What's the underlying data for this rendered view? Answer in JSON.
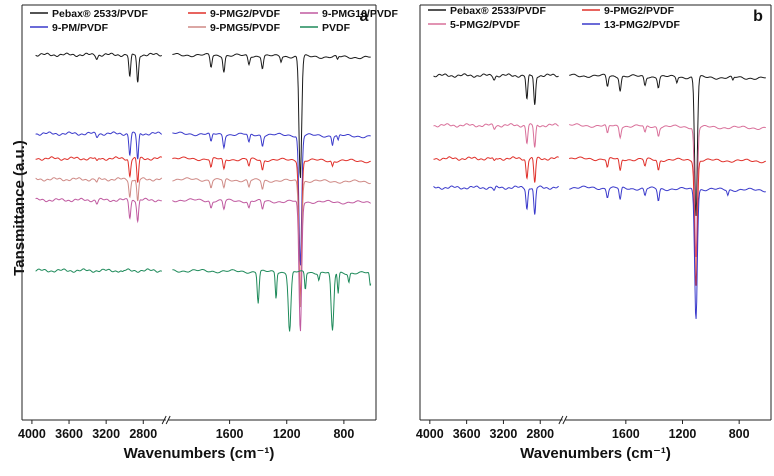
{
  "chart_data": [
    {
      "type": "line",
      "panel_label": "a",
      "xlabel": "Wavenumbers (cm⁻¹)",
      "ylabel": "Tansmittance (a.u.)",
      "xlim": [
        4000,
        600
      ],
      "axis_break": [
        2600,
        2000
      ],
      "xticks": [
        4000,
        3600,
        3200,
        2800,
        1600,
        1200,
        800
      ],
      "legend": [
        {
          "name": "Pebax® 2533/PVDF",
          "color": "#1a1a1a"
        },
        {
          "name": "9-PMG2/PVDF",
          "color": "#e0302a"
        },
        {
          "name": "9-PMG10/PVDF",
          "color": "#c05aa0"
        },
        {
          "name": "9-PM/PVDF",
          "color": "#3a3acb"
        },
        {
          "name": "9-PMG5/PVDF",
          "color": "#cf8a86"
        },
        {
          "name": "PVDF",
          "color": "#1e8a5a"
        }
      ],
      "series": [
        {
          "name": "Pebax® 2533/PVDF",
          "color": "#1a1a1a",
          "offset": 0.12,
          "peaks": [
            [
              3300,
              0.02
            ],
            [
              2945,
              0.13
            ],
            [
              2860,
              0.16
            ],
            [
              1730,
              0.07
            ],
            [
              1640,
              0.09
            ],
            [
              1465,
              0.05
            ],
            [
              1370,
              0.07
            ],
            [
              1240,
              0.03
            ],
            [
              1105,
              0.7
            ],
            [
              845,
              0.02
            ]
          ]
        },
        {
          "name": "9-PM/PVDF",
          "color": "#3a3acb",
          "offset": 0.31,
          "peaks": [
            [
              3300,
              0.02
            ],
            [
              2945,
              0.12
            ],
            [
              2860,
              0.15
            ],
            [
              1730,
              0.05
            ],
            [
              1640,
              0.07
            ],
            [
              1465,
              0.05
            ],
            [
              1370,
              0.06
            ],
            [
              1105,
              0.75
            ],
            [
              880,
              0.05
            ],
            [
              840,
              0.03
            ]
          ]
        },
        {
          "name": "9-PMG2/PVDF",
          "color": "#e0302a",
          "offset": 0.37,
          "peaks": [
            [
              3300,
              0.02
            ],
            [
              2945,
              0.1
            ],
            [
              2860,
              0.14
            ],
            [
              1730,
              0.05
            ],
            [
              1640,
              0.06
            ],
            [
              1465,
              0.04
            ],
            [
              1370,
              0.06
            ],
            [
              1105,
              0.8
            ],
            [
              880,
              0.03
            ]
          ]
        },
        {
          "name": "9-PMG5/PVDF",
          "color": "#cf8a86",
          "offset": 0.42,
          "peaks": [
            [
              3300,
              0.02
            ],
            [
              2945,
              0.1
            ],
            [
              2860,
              0.13
            ],
            [
              1730,
              0.04
            ],
            [
              1640,
              0.05
            ],
            [
              1465,
              0.04
            ],
            [
              1370,
              0.05
            ],
            [
              1105,
              0.72
            ]
          ]
        },
        {
          "name": "9-PMG10/PVDF",
          "color": "#c05aa0",
          "offset": 0.47,
          "peaks": [
            [
              3300,
              0.02
            ],
            [
              2945,
              0.1
            ],
            [
              2860,
              0.12
            ],
            [
              1730,
              0.04
            ],
            [
              1640,
              0.05
            ],
            [
              1465,
              0.04
            ],
            [
              1370,
              0.05
            ],
            [
              1105,
              0.75
            ]
          ]
        },
        {
          "name": "PVDF",
          "color": "#1e8a5a",
          "offset": 0.64,
          "peaks": [
            [
              3025,
              0.01
            ],
            [
              1400,
              0.18
            ],
            [
              1275,
              0.15
            ],
            [
              1180,
              0.34
            ],
            [
              1070,
              0.1
            ],
            [
              975,
              0.04
            ],
            [
              880,
              0.34
            ],
            [
              840,
              0.12
            ],
            [
              765,
              0.05
            ],
            [
              615,
              0.08
            ]
          ]
        }
      ]
    },
    {
      "type": "line",
      "panel_label": "b",
      "xlabel": "Wavenumbers (cm⁻¹)",
      "xlim": [
        4000,
        600
      ],
      "axis_break": [
        2600,
        2000
      ],
      "xticks": [
        4000,
        3600,
        3200,
        2800,
        1600,
        1200,
        800
      ],
      "legend": [
        {
          "name": "Pebax® 2533/PVDF",
          "color": "#1a1a1a"
        },
        {
          "name": "9-PMG2/PVDF",
          "color": "#e0302a"
        },
        {
          "name": "5-PMG2/PVDF",
          "color": "#d9709a"
        },
        {
          "name": "13-PMG2/PVDF",
          "color": "#3a3acb"
        }
      ],
      "series": [
        {
          "name": "Pebax® 2533/PVDF",
          "color": "#1a1a1a",
          "offset": 0.17,
          "peaks": [
            [
              3300,
              0.02
            ],
            [
              2945,
              0.14
            ],
            [
              2860,
              0.17
            ],
            [
              1730,
              0.06
            ],
            [
              1640,
              0.08
            ],
            [
              1465,
              0.05
            ],
            [
              1370,
              0.06
            ],
            [
              1240,
              0.03
            ],
            [
              1105,
              0.8
            ],
            [
              845,
              0.02
            ]
          ]
        },
        {
          "name": "5-PMG2/PVDF",
          "color": "#d9709a",
          "offset": 0.29,
          "peaks": [
            [
              3300,
              0.02
            ],
            [
              2945,
              0.1
            ],
            [
              2860,
              0.13
            ],
            [
              1730,
              0.05
            ],
            [
              1640,
              0.06
            ],
            [
              1465,
              0.04
            ],
            [
              1370,
              0.05
            ],
            [
              1105,
              0.75
            ]
          ]
        },
        {
          "name": "9-PMG2/PVDF",
          "color": "#e0302a",
          "offset": 0.37,
          "peaks": [
            [
              3300,
              0.02
            ],
            [
              2945,
              0.11
            ],
            [
              2860,
              0.14
            ],
            [
              1730,
              0.05
            ],
            [
              1640,
              0.07
            ],
            [
              1465,
              0.04
            ],
            [
              1370,
              0.06
            ],
            [
              1105,
              0.72
            ]
          ]
        },
        {
          "name": "13-PMG2/PVDF",
          "color": "#3a3acb",
          "offset": 0.44,
          "peaks": [
            [
              3300,
              0.02
            ],
            [
              2945,
              0.12
            ],
            [
              2860,
              0.16
            ],
            [
              1730,
              0.05
            ],
            [
              1640,
              0.07
            ],
            [
              1465,
              0.04
            ],
            [
              1370,
              0.07
            ],
            [
              1105,
              0.74
            ],
            [
              880,
              0.03
            ]
          ]
        }
      ]
    }
  ]
}
